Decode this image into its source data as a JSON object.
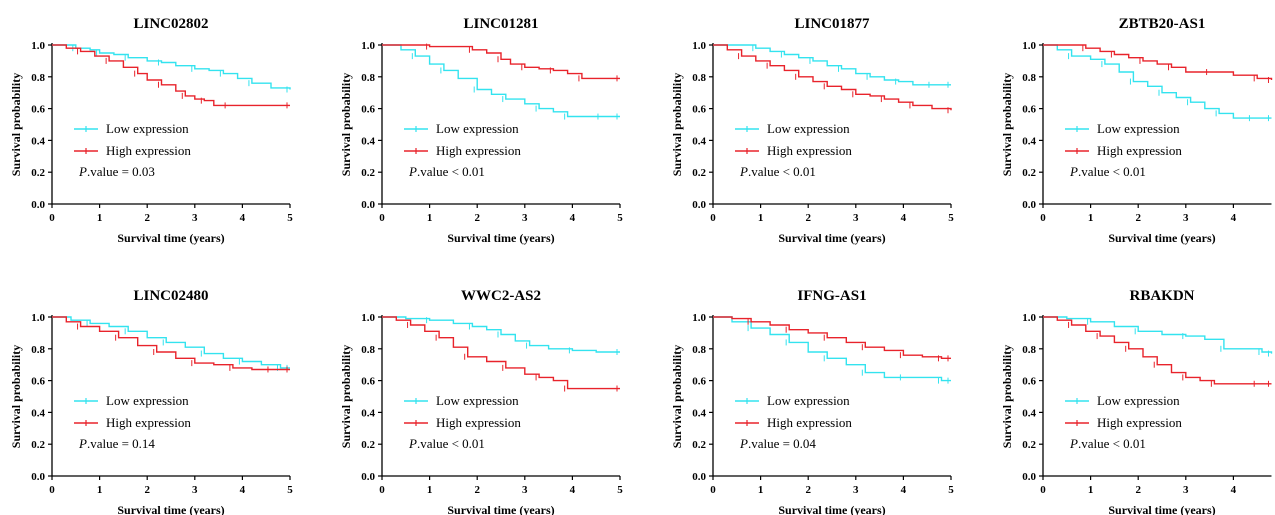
{
  "figure": {
    "xlabel": "Survival time (years)",
    "ylabel": "Survival probability",
    "legend_low": "Low expression",
    "legend_high": "High expression",
    "p_prefix": "P",
    "low_color": "#33e3ef",
    "high_color": "#e8232b"
  },
  "chart_data": [
    {
      "type": "line",
      "title": "LINC02802",
      "p_value": ".value = 0.03",
      "xlim": [
        0,
        5
      ],
      "ylim": [
        0,
        1.0
      ],
      "xticks": [
        "0",
        "1",
        "2",
        "3",
        "4",
        "5"
      ],
      "yticks": [
        "0.0",
        "0.2",
        "0.4",
        "0.6",
        "0.8",
        "1.0"
      ],
      "series": [
        {
          "name": "Low expression",
          "color": "#33e3ef",
          "x": [
            0,
            0.3,
            0.5,
            0.8,
            1.0,
            1.3,
            1.6,
            2.0,
            2.3,
            2.6,
            3.0,
            3.3,
            3.6,
            3.9,
            4.2,
            4.6,
            5.0
          ],
          "y": [
            1.0,
            1.0,
            0.98,
            0.97,
            0.95,
            0.94,
            0.92,
            0.9,
            0.89,
            0.87,
            0.85,
            0.84,
            0.82,
            0.79,
            0.76,
            0.73,
            0.72
          ]
        },
        {
          "name": "High expression",
          "color": "#e8232b",
          "x": [
            0,
            0.3,
            0.6,
            0.9,
            1.2,
            1.5,
            1.8,
            2.0,
            2.3,
            2.6,
            2.8,
            3.0,
            3.2,
            3.4,
            3.7,
            4.0,
            5.0
          ],
          "y": [
            1.0,
            0.98,
            0.96,
            0.93,
            0.9,
            0.86,
            0.82,
            0.78,
            0.75,
            0.71,
            0.68,
            0.66,
            0.65,
            0.62,
            0.62,
            0.62,
            0.62
          ]
        }
      ]
    },
    {
      "type": "line",
      "title": "LINC01281",
      "p_value": ".value < 0.01",
      "xlim": [
        0,
        5
      ],
      "ylim": [
        0,
        1.0
      ],
      "xticks": [
        "0",
        "1",
        "2",
        "3",
        "4",
        "5"
      ],
      "yticks": [
        "0.0",
        "0.2",
        "0.4",
        "0.6",
        "0.8",
        "1.0"
      ],
      "series": [
        {
          "name": "Low expression",
          "color": "#33e3ef",
          "x": [
            0,
            0.4,
            0.7,
            1.0,
            1.3,
            1.6,
            2.0,
            2.3,
            2.6,
            3.0,
            3.3,
            3.6,
            3.9,
            4.2,
            4.6,
            5.0
          ],
          "y": [
            1.0,
            0.97,
            0.93,
            0.88,
            0.84,
            0.79,
            0.72,
            0.69,
            0.66,
            0.63,
            0.6,
            0.58,
            0.55,
            0.55,
            0.55,
            0.55
          ]
        },
        {
          "name": "High expression",
          "color": "#e8232b",
          "x": [
            0,
            0.5,
            1.0,
            1.5,
            1.9,
            2.2,
            2.5,
            2.7,
            3.0,
            3.3,
            3.6,
            3.9,
            4.2,
            4.5,
            5.0
          ],
          "y": [
            1.0,
            1.0,
            0.99,
            0.99,
            0.97,
            0.95,
            0.91,
            0.88,
            0.86,
            0.85,
            0.84,
            0.82,
            0.79,
            0.79,
            0.79
          ]
        }
      ]
    },
    {
      "type": "line",
      "title": "LINC01877",
      "p_value": ".value < 0.01",
      "xlim": [
        0,
        5
      ],
      "ylim": [
        0,
        1.0
      ],
      "xticks": [
        "0",
        "1",
        "2",
        "3",
        "4",
        "5"
      ],
      "yticks": [
        "0.0",
        "0.2",
        "0.4",
        "0.6",
        "0.8",
        "1.0"
      ],
      "series": [
        {
          "name": "Low expression",
          "color": "#33e3ef",
          "x": [
            0,
            0.5,
            0.9,
            1.2,
            1.5,
            1.8,
            2.1,
            2.4,
            2.7,
            3.0,
            3.3,
            3.6,
            3.9,
            4.2,
            4.6,
            5.0
          ],
          "y": [
            1.0,
            1.0,
            0.98,
            0.96,
            0.94,
            0.92,
            0.9,
            0.87,
            0.85,
            0.82,
            0.8,
            0.78,
            0.77,
            0.75,
            0.75,
            0.75
          ]
        },
        {
          "name": "High expression",
          "color": "#e8232b",
          "x": [
            0,
            0.3,
            0.6,
            0.9,
            1.2,
            1.5,
            1.8,
            2.1,
            2.4,
            2.7,
            3.0,
            3.3,
            3.6,
            3.9,
            4.2,
            4.6,
            5.0
          ],
          "y": [
            1.0,
            0.97,
            0.93,
            0.9,
            0.87,
            0.84,
            0.8,
            0.77,
            0.74,
            0.72,
            0.69,
            0.68,
            0.66,
            0.64,
            0.62,
            0.6,
            0.59
          ]
        }
      ]
    },
    {
      "type": "line",
      "title": "ZBTB20-AS1",
      "p_value": ".value < 0.01",
      "xlim": [
        0,
        4.8
      ],
      "ylim": [
        0,
        1.0
      ],
      "xticks": [
        "0",
        "1",
        "2",
        "3",
        "4"
      ],
      "yticks": [
        "0.0",
        "0.2",
        "0.4",
        "0.6",
        "0.8",
        "1.0"
      ],
      "series": [
        {
          "name": "Low expression",
          "color": "#33e3ef",
          "x": [
            0,
            0.3,
            0.6,
            1.0,
            1.3,
            1.6,
            1.9,
            2.2,
            2.5,
            2.8,
            3.1,
            3.4,
            3.7,
            4.0,
            4.4,
            4.8
          ],
          "y": [
            1.0,
            0.97,
            0.93,
            0.91,
            0.88,
            0.83,
            0.77,
            0.74,
            0.7,
            0.67,
            0.64,
            0.6,
            0.57,
            0.54,
            0.54,
            0.54
          ]
        },
        {
          "name": "High expression",
          "color": "#e8232b",
          "x": [
            0,
            0.6,
            0.9,
            1.2,
            1.5,
            1.8,
            2.1,
            2.4,
            2.7,
            3.0,
            3.5,
            4.0,
            4.5,
            4.8
          ],
          "y": [
            1.0,
            1.0,
            0.98,
            0.96,
            0.94,
            0.92,
            0.9,
            0.88,
            0.86,
            0.83,
            0.83,
            0.81,
            0.79,
            0.78
          ]
        }
      ]
    },
    {
      "type": "line",
      "title": "LINC02480",
      "p_value": ".value = 0.14",
      "xlim": [
        0,
        5
      ],
      "ylim": [
        0,
        1.0
      ],
      "xticks": [
        "0",
        "1",
        "2",
        "3",
        "4",
        "5"
      ],
      "yticks": [
        "0.0",
        "0.2",
        "0.4",
        "0.6",
        "0.8",
        "1.0"
      ],
      "series": [
        {
          "name": "Low expression",
          "color": "#33e3ef",
          "x": [
            0,
            0.4,
            0.8,
            1.2,
            1.6,
            2.0,
            2.4,
            2.8,
            3.2,
            3.6,
            4.0,
            4.4,
            4.8,
            5.0
          ],
          "y": [
            1.0,
            0.98,
            0.96,
            0.94,
            0.91,
            0.87,
            0.84,
            0.81,
            0.77,
            0.74,
            0.72,
            0.7,
            0.68,
            0.68
          ]
        },
        {
          "name": "High expression",
          "color": "#e8232b",
          "x": [
            0,
            0.3,
            0.6,
            1.0,
            1.4,
            1.8,
            2.2,
            2.6,
            3.0,
            3.4,
            3.8,
            4.2,
            4.6,
            5.0
          ],
          "y": [
            1.0,
            0.97,
            0.94,
            0.91,
            0.87,
            0.82,
            0.78,
            0.74,
            0.71,
            0.7,
            0.68,
            0.67,
            0.67,
            0.67
          ]
        }
      ]
    },
    {
      "type": "line",
      "title": "WWC2-AS2",
      "p_value": ".value < 0.01",
      "xlim": [
        0,
        5
      ],
      "ylim": [
        0,
        1.0
      ],
      "xticks": [
        "0",
        "1",
        "2",
        "3",
        "4",
        "5"
      ],
      "yticks": [
        "0.0",
        "0.2",
        "0.4",
        "0.6",
        "0.8",
        "1.0"
      ],
      "series": [
        {
          "name": "Low expression",
          "color": "#33e3ef",
          "x": [
            0,
            0.5,
            1.0,
            1.5,
            1.9,
            2.2,
            2.5,
            2.8,
            3.1,
            3.5,
            4.0,
            4.5,
            5.0
          ],
          "y": [
            1.0,
            0.99,
            0.98,
            0.96,
            0.94,
            0.92,
            0.89,
            0.85,
            0.82,
            0.8,
            0.79,
            0.78,
            0.78
          ]
        },
        {
          "name": "High expression",
          "color": "#e8232b",
          "x": [
            0,
            0.3,
            0.6,
            0.9,
            1.2,
            1.5,
            1.8,
            2.2,
            2.6,
            3.0,
            3.3,
            3.6,
            3.9,
            4.2,
            5.0
          ],
          "y": [
            1.0,
            0.98,
            0.95,
            0.91,
            0.87,
            0.81,
            0.75,
            0.72,
            0.68,
            0.64,
            0.62,
            0.6,
            0.55,
            0.55,
            0.55
          ]
        }
      ]
    },
    {
      "type": "line",
      "title": "IFNG-AS1",
      "p_value": ".value = 0.04",
      "xlim": [
        0,
        5
      ],
      "ylim": [
        0,
        1.0
      ],
      "xticks": [
        "0",
        "1",
        "2",
        "3",
        "4",
        "5"
      ],
      "yticks": [
        "0.0",
        "0.2",
        "0.4",
        "0.6",
        "0.8",
        "1.0"
      ],
      "series": [
        {
          "name": "Low expression",
          "color": "#33e3ef",
          "x": [
            0,
            0.4,
            0.8,
            1.2,
            1.6,
            2.0,
            2.4,
            2.8,
            3.2,
            3.6,
            4.0,
            4.4,
            4.8,
            5.0
          ],
          "y": [
            1.0,
            0.97,
            0.93,
            0.89,
            0.84,
            0.78,
            0.74,
            0.7,
            0.65,
            0.62,
            0.62,
            0.62,
            0.6,
            0.6
          ]
        },
        {
          "name": "High expression",
          "color": "#e8232b",
          "x": [
            0,
            0.4,
            0.8,
            1.2,
            1.6,
            2.0,
            2.4,
            2.8,
            3.2,
            3.6,
            4.0,
            4.4,
            4.8,
            5.0
          ],
          "y": [
            1.0,
            0.99,
            0.97,
            0.95,
            0.92,
            0.9,
            0.87,
            0.84,
            0.81,
            0.79,
            0.76,
            0.75,
            0.74,
            0.74
          ]
        }
      ]
    },
    {
      "type": "line",
      "title": "RBAKDN",
      "p_value": ".value < 0.01",
      "xlim": [
        0,
        4.8
      ],
      "ylim": [
        0,
        1.0
      ],
      "xticks": [
        "0",
        "1",
        "2",
        "3",
        "4"
      ],
      "yticks": [
        "0.0",
        "0.2",
        "0.4",
        "0.6",
        "0.8",
        "1.0"
      ],
      "series": [
        {
          "name": "Low expression",
          "color": "#33e3ef",
          "x": [
            0,
            0.5,
            1.0,
            1.5,
            2.0,
            2.5,
            3.0,
            3.4,
            3.8,
            4.2,
            4.6,
            4.8
          ],
          "y": [
            1.0,
            0.99,
            0.97,
            0.94,
            0.91,
            0.89,
            0.88,
            0.86,
            0.8,
            0.8,
            0.78,
            0.77
          ]
        },
        {
          "name": "High expression",
          "color": "#e8232b",
          "x": [
            0,
            0.3,
            0.6,
            0.9,
            1.2,
            1.5,
            1.8,
            2.1,
            2.4,
            2.7,
            3.0,
            3.3,
            3.6,
            4.0,
            4.5,
            4.8
          ],
          "y": [
            1.0,
            0.98,
            0.95,
            0.91,
            0.88,
            0.84,
            0.8,
            0.75,
            0.7,
            0.65,
            0.62,
            0.6,
            0.58,
            0.58,
            0.58,
            0.58
          ]
        }
      ]
    }
  ]
}
